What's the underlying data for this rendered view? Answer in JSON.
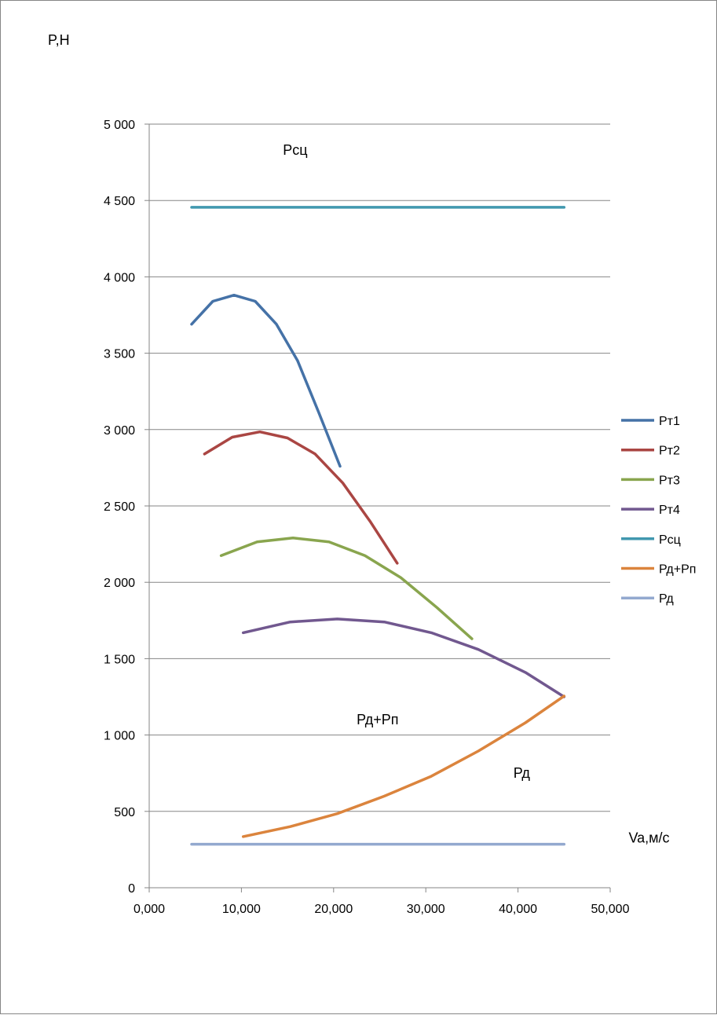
{
  "chart_data": {
    "type": "line",
    "ylabel": "P,Н",
    "xlabel": "Va,м/с",
    "xlim": [
      0,
      50
    ],
    "ylim": [
      0,
      5000
    ],
    "x_ticks": [
      0,
      10,
      20,
      30,
      40,
      50
    ],
    "x_tick_labels": [
      "0,000",
      "10,000",
      "20,000",
      "30,000",
      "40,000",
      "50,000"
    ],
    "y_ticks": [
      0,
      500,
      1000,
      1500,
      2000,
      2500,
      3000,
      3500,
      4000,
      4500,
      5000
    ],
    "y_tick_labels": [
      "0",
      "500",
      "1 000",
      "1 500",
      "2 000",
      "2 500",
      "3 000",
      "3 500",
      "4 000",
      "4 500",
      "5 000"
    ],
    "grid": "horizontal",
    "legend_position": "right",
    "annotations": [
      {
        "text": "Рсц",
        "x": 14.5,
        "y": 4800
      },
      {
        "text": "Рд+Рп",
        "x": 22.5,
        "y": 1070
      },
      {
        "text": "Рд",
        "x": 39.5,
        "y": 720
      },
      {
        "text": "Va,м/с",
        "x": 52,
        "y": 295
      }
    ],
    "series": [
      {
        "name": "Рт1",
        "color": "#4572A7",
        "x": [
          4.6,
          6.9,
          9.2,
          11.5,
          13.8,
          16.1,
          18.4,
          20.7
        ],
        "y": [
          3690,
          3840,
          3880,
          3840,
          3690,
          3450,
          3110,
          2760
        ]
      },
      {
        "name": "Рт2",
        "color": "#AA4643",
        "x": [
          6.0,
          9.0,
          12.0,
          15.0,
          18.0,
          21.0,
          24.0,
          26.9
        ],
        "y": [
          2840,
          2950,
          2985,
          2945,
          2840,
          2650,
          2395,
          2125
        ]
      },
      {
        "name": "Рт3",
        "color": "#89A54E",
        "x": [
          7.8,
          11.7,
          15.6,
          19.5,
          23.4,
          27.3,
          31.2,
          35.0
        ],
        "y": [
          2175,
          2265,
          2290,
          2265,
          2175,
          2030,
          1835,
          1630
        ]
      },
      {
        "name": "Рт4",
        "color": "#71588F",
        "x": [
          10.2,
          15.3,
          20.4,
          25.5,
          30.6,
          35.7,
          40.8,
          45.0
        ],
        "y": [
          1670,
          1740,
          1760,
          1740,
          1670,
          1560,
          1410,
          1250
        ]
      },
      {
        "name": "Рсц",
        "color": "#4198AF",
        "x": [
          4.6,
          45.0
        ],
        "y": [
          4455,
          4455
        ]
      },
      {
        "name": "Рд+Рп",
        "color": "#DB843D",
        "x": [
          10.2,
          15.3,
          20.4,
          25.5,
          30.6,
          35.7,
          40.8,
          45.0
        ],
        "y": [
          335,
          400,
          485,
          600,
          730,
          895,
          1080,
          1255
        ]
      },
      {
        "name": "Рд",
        "color": "#93A9CF",
        "x": [
          4.6,
          45.0
        ],
        "y": [
          285,
          285
        ]
      }
    ]
  }
}
